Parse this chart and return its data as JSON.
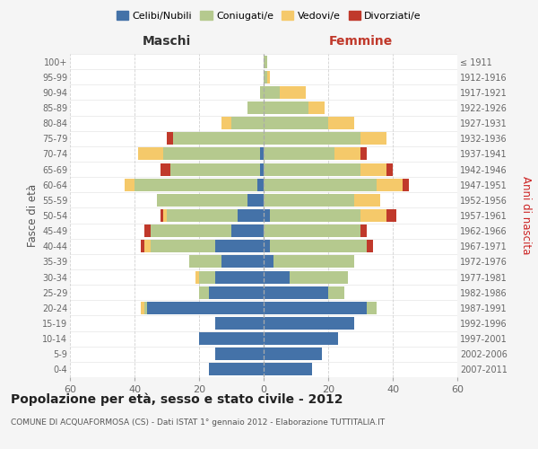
{
  "age_groups_bottom_to_top": [
    "0-4",
    "5-9",
    "10-14",
    "15-19",
    "20-24",
    "25-29",
    "30-34",
    "35-39",
    "40-44",
    "45-49",
    "50-54",
    "55-59",
    "60-64",
    "65-69",
    "70-74",
    "75-79",
    "80-84",
    "85-89",
    "90-94",
    "95-99",
    "100+"
  ],
  "birth_years_bottom_to_top": [
    "2007-2011",
    "2002-2006",
    "1997-2001",
    "1992-1996",
    "1987-1991",
    "1982-1986",
    "1977-1981",
    "1972-1976",
    "1967-1971",
    "1962-1966",
    "1957-1961",
    "1952-1956",
    "1947-1951",
    "1942-1946",
    "1937-1941",
    "1932-1936",
    "1927-1931",
    "1922-1926",
    "1917-1921",
    "1912-1916",
    "≤ 1911"
  ],
  "males_celibe": [
    17,
    15,
    20,
    15,
    36,
    17,
    15,
    13,
    15,
    10,
    8,
    5,
    2,
    1,
    1,
    0,
    0,
    0,
    0,
    0,
    0
  ],
  "males_coniugato": [
    0,
    0,
    0,
    0,
    1,
    3,
    5,
    10,
    20,
    25,
    22,
    28,
    38,
    28,
    30,
    28,
    10,
    5,
    1,
    0,
    0
  ],
  "males_vedovo": [
    0,
    0,
    0,
    0,
    1,
    0,
    1,
    0,
    2,
    0,
    1,
    0,
    3,
    0,
    8,
    0,
    3,
    0,
    0,
    0,
    0
  ],
  "males_divorziato": [
    0,
    0,
    0,
    0,
    0,
    0,
    0,
    0,
    1,
    2,
    1,
    0,
    0,
    3,
    0,
    2,
    0,
    0,
    0,
    0,
    0
  ],
  "females_nubile": [
    15,
    18,
    23,
    28,
    32,
    20,
    8,
    3,
    2,
    0,
    2,
    0,
    0,
    0,
    0,
    0,
    0,
    0,
    0,
    0,
    0
  ],
  "females_coniugata": [
    0,
    0,
    0,
    0,
    3,
    5,
    18,
    25,
    30,
    30,
    28,
    28,
    35,
    30,
    22,
    30,
    20,
    14,
    5,
    1,
    1
  ],
  "females_vedova": [
    0,
    0,
    0,
    0,
    0,
    0,
    0,
    0,
    0,
    0,
    8,
    8,
    8,
    8,
    8,
    8,
    8,
    5,
    8,
    1,
    0
  ],
  "females_divorziata": [
    0,
    0,
    0,
    0,
    0,
    0,
    0,
    0,
    2,
    2,
    3,
    0,
    2,
    2,
    2,
    0,
    0,
    0,
    0,
    0,
    0
  ],
  "color_celibe": "#4472a8",
  "color_coniugato": "#b5c98e",
  "color_vedovo": "#f5c96a",
  "color_divorziato": "#c0392b",
  "title": "Popolazione per età, sesso e stato civile - 2012",
  "subtitle": "COMUNE DI ACQUAFORMOSA (CS) - Dati ISTAT 1° gennaio 2012 - Elaborazione TUTTITALIA.IT",
  "xlabel_left": "Maschi",
  "xlabel_right": "Femmine",
  "ylabel_left": "Fasce di età",
  "ylabel_right": "Anni di nascita",
  "xlim": 60,
  "bg_color": "#f5f5f5",
  "plot_bg": "#ffffff",
  "grid_color": "#cccccc"
}
